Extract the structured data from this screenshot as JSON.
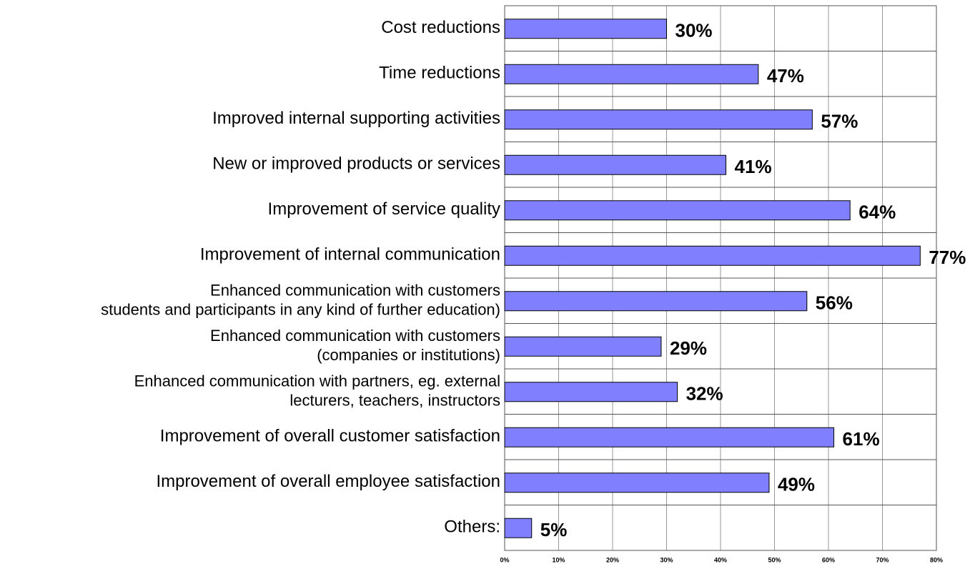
{
  "chart_data": {
    "type": "bar",
    "orientation": "horizontal",
    "categories": [
      "Cost reductions",
      "Time reductions",
      "Improved internal supporting activities",
      "New or improved products or services",
      "Improvement of service quality",
      "Improvement of internal communication",
      "Enhanced communication with customers\nstudents and participants in any kind of further education)",
      "Enhanced communication with customers\n(companies or institutions)",
      "Enhanced communication with partners, eg. external\nlecturers, teachers, instructors",
      "Improvement of overall customer satisfaction",
      "Improvement of overall employee satisfaction",
      "Others:"
    ],
    "values": [
      30,
      47,
      57,
      41,
      64,
      77,
      56,
      29,
      32,
      61,
      49,
      5
    ],
    "value_labels": [
      "30%",
      "47%",
      "57%",
      "41%",
      "64%",
      "77%",
      "56%",
      "29%",
      "32%",
      "61%",
      "49%",
      "5%"
    ],
    "color": "#8080ff",
    "xlim": [
      0,
      80
    ],
    "xticks": [
      {
        "value": 0,
        "label": "0%"
      },
      {
        "value": 10,
        "label": "10%"
      },
      {
        "value": 20,
        "label": "20%"
      },
      {
        "value": 30,
        "label": "30%"
      },
      {
        "value": 40,
        "label": "40%"
      },
      {
        "value": 50,
        "label": "50%"
      },
      {
        "value": 60,
        "label": "60%"
      },
      {
        "value": 70,
        "label": "70%"
      },
      {
        "value": 80,
        "label": "80%"
      }
    ],
    "grid": true
  }
}
